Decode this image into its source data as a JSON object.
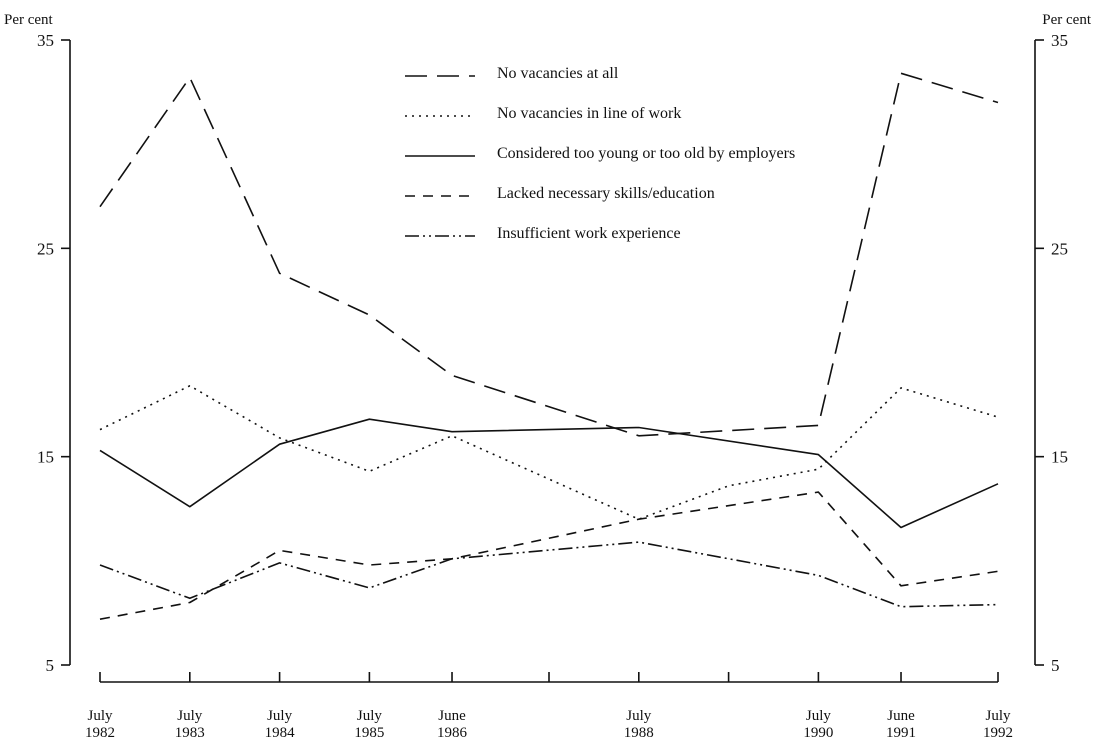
{
  "chart_data": {
    "type": "line",
    "ylabel_left": "Per cent",
    "ylabel_right": "Per cent",
    "ylim": [
      5,
      35
    ],
    "y_ticks": [
      5,
      15,
      25,
      35
    ],
    "x_ticks": [
      {
        "month": "July",
        "year": "1982",
        "t": 1982.5
      },
      {
        "month": "July",
        "year": "1983",
        "t": 1983.5
      },
      {
        "month": "July",
        "year": "1984",
        "t": 1984.5
      },
      {
        "month": "July",
        "year": "1985",
        "t": 1985.5
      },
      {
        "month": "June",
        "year": "1986",
        "t": 1986.42
      },
      {
        "month": "July",
        "year": "1988",
        "t": 1988.5
      },
      {
        "month": "July",
        "year": "1990",
        "t": 1990.5
      },
      {
        "month": "June",
        "year": "1991",
        "t": 1991.42
      },
      {
        "month": "July",
        "year": "1992",
        "t": 1992.5
      }
    ],
    "x_minor_ticks": [
      1987.5,
      1989.5
    ],
    "series": [
      {
        "name": "No vacancies at all",
        "dash": "22,10",
        "points": [
          [
            1982.5,
            27.0
          ],
          [
            1983.5,
            33.2
          ],
          [
            1984.5,
            23.8
          ],
          [
            1985.5,
            21.8
          ],
          [
            1986.42,
            18.9
          ],
          [
            1988.5,
            16.0
          ],
          [
            1990.5,
            16.5
          ],
          [
            1991.42,
            33.4
          ],
          [
            1992.5,
            32.0
          ]
        ]
      },
      {
        "name": "No vacancies in line of work",
        "dash": "2,5",
        "points": [
          [
            1982.5,
            16.3
          ],
          [
            1983.5,
            18.4
          ],
          [
            1984.5,
            15.9
          ],
          [
            1985.5,
            14.3
          ],
          [
            1986.42,
            16.0
          ],
          [
            1988.5,
            12.0
          ],
          [
            1989.5,
            13.6
          ],
          [
            1990.5,
            14.4
          ],
          [
            1991.42,
            18.3
          ],
          [
            1992.5,
            16.9
          ]
        ]
      },
      {
        "name": "Considered too young or too old by employers",
        "dash": "",
        "points": [
          [
            1982.5,
            15.3
          ],
          [
            1983.5,
            12.6
          ],
          [
            1984.5,
            15.6
          ],
          [
            1985.5,
            16.8
          ],
          [
            1986.42,
            16.2
          ],
          [
            1988.5,
            16.4
          ],
          [
            1990.5,
            15.1
          ],
          [
            1991.42,
            11.6
          ],
          [
            1992.5,
            13.7
          ]
        ]
      },
      {
        "name": "Lacked necessary skills/education",
        "dash": "10,8",
        "points": [
          [
            1982.5,
            7.2
          ],
          [
            1983.5,
            8.0
          ],
          [
            1984.5,
            10.5
          ],
          [
            1985.5,
            9.8
          ],
          [
            1986.42,
            10.1
          ],
          [
            1988.5,
            12.0
          ],
          [
            1990.5,
            13.3
          ],
          [
            1991.42,
            8.8
          ],
          [
            1992.5,
            9.5
          ]
        ]
      },
      {
        "name": "Insufficient work experience",
        "dash": "14,4,2,4,2,4",
        "points": [
          [
            1982.5,
            9.8
          ],
          [
            1983.5,
            8.2
          ],
          [
            1984.5,
            9.9
          ],
          [
            1985.5,
            8.7
          ],
          [
            1986.42,
            10.1
          ],
          [
            1988.5,
            10.9
          ],
          [
            1990.5,
            9.3
          ],
          [
            1991.42,
            7.8
          ],
          [
            1992.5,
            7.9
          ]
        ]
      }
    ],
    "legend_position": "top-center"
  }
}
